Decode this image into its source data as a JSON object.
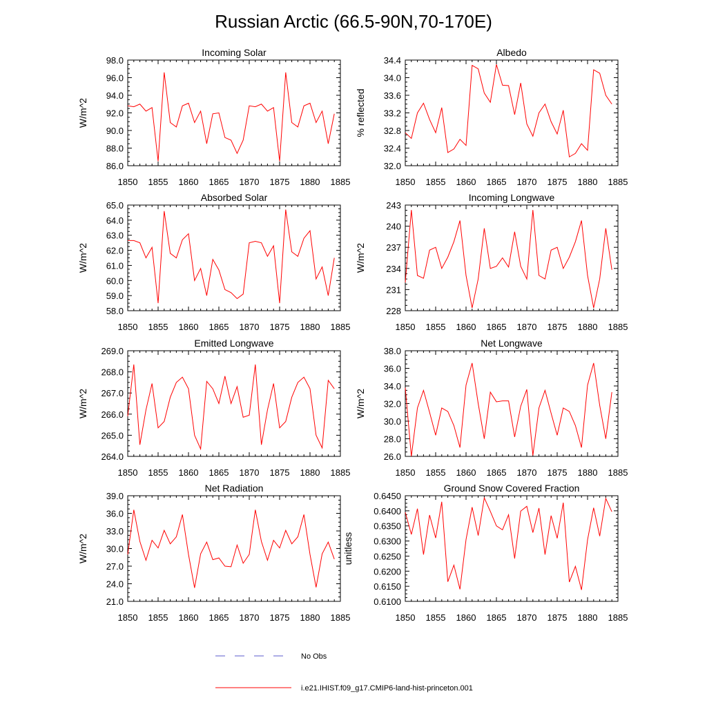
{
  "page": {
    "title": "Russian Arctic (66.5-90N,70-170E)"
  },
  "legend": {
    "items": [
      {
        "label": "No Obs",
        "color": "#5a5acd",
        "style": "dashed"
      },
      {
        "label": "i.e21.IHIST.f09_g17.CMIP6-land-hist-princeton.001",
        "color": "#ff0000",
        "style": "solid"
      }
    ]
  },
  "chart_data": [
    {
      "type": "line",
      "title": "Incoming Solar",
      "ylabel": "W/m^2",
      "xlim": [
        1850,
        1885
      ],
      "ylim": [
        86.0,
        98.0
      ],
      "xticks": [
        "1850",
        "1855",
        "1860",
        "1865",
        "1870",
        "1875",
        "1880",
        "1885"
      ],
      "yticks": [
        "86.0",
        "88.0",
        "90.0",
        "92.0",
        "94.0",
        "96.0",
        "98.0"
      ],
      "series": [
        {
          "color": "#ff0000",
          "x": [
            1850,
            1851,
            1852,
            1853,
            1854,
            1855,
            1856,
            1857,
            1858,
            1859,
            1860,
            1861,
            1862,
            1863,
            1864,
            1865,
            1866,
            1867,
            1868,
            1869,
            1870,
            1871,
            1872,
            1873,
            1874,
            1875,
            1876,
            1877,
            1878,
            1879,
            1880,
            1881,
            1882,
            1883,
            1884
          ],
          "values": [
            92.8,
            92.7,
            93.0,
            92.2,
            92.6,
            86.5,
            96.6,
            90.9,
            90.4,
            92.8,
            93.1,
            90.9,
            92.2,
            88.5,
            91.9,
            92.0,
            89.2,
            88.9,
            87.4,
            88.9,
            92.8,
            92.7,
            93.0,
            92.2,
            92.6,
            86.5,
            96.6,
            90.9,
            90.4,
            92.8,
            93.1,
            90.9,
            92.2,
            88.5,
            91.9
          ]
        }
      ]
    },
    {
      "type": "line",
      "title": "Albedo",
      "ylabel": "% reflected",
      "xlim": [
        1850,
        1885
      ],
      "ylim": [
        32.0,
        34.4
      ],
      "xticks": [
        "1850",
        "1855",
        "1860",
        "1865",
        "1870",
        "1875",
        "1880",
        "1885"
      ],
      "yticks": [
        "32.0",
        "32.4",
        "32.8",
        "33.2",
        "33.6",
        "34.0",
        "34.4"
      ],
      "series": [
        {
          "color": "#ff0000",
          "x": [
            1850,
            1851,
            1852,
            1853,
            1854,
            1855,
            1856,
            1857,
            1858,
            1859,
            1860,
            1861,
            1862,
            1863,
            1864,
            1865,
            1866,
            1867,
            1868,
            1869,
            1870,
            1871,
            1872,
            1873,
            1874,
            1875,
            1876,
            1877,
            1878,
            1879,
            1880,
            1881,
            1882,
            1883,
            1884
          ],
          "values": [
            32.75,
            32.62,
            33.2,
            33.42,
            33.05,
            32.75,
            33.32,
            32.3,
            32.38,
            32.6,
            32.46,
            34.28,
            34.2,
            33.65,
            33.44,
            34.3,
            33.83,
            33.82,
            33.16,
            33.88,
            32.95,
            32.67,
            33.2,
            33.4,
            33.0,
            32.72,
            33.26,
            32.2,
            32.28,
            32.5,
            32.35,
            34.18,
            34.1,
            33.6,
            33.4
          ]
        }
      ]
    },
    {
      "type": "line",
      "title": "Absorbed Solar",
      "ylabel": "W/m^2",
      "xlim": [
        1850,
        1885
      ],
      "ylim": [
        58.0,
        65.0
      ],
      "xticks": [
        "1850",
        "1855",
        "1860",
        "1865",
        "1870",
        "1875",
        "1880",
        "1885"
      ],
      "yticks": [
        "58.0",
        "59.0",
        "60.0",
        "61.0",
        "62.0",
        "63.0",
        "64.0",
        "65.0"
      ],
      "series": [
        {
          "color": "#ff0000",
          "x": [
            1850,
            1851,
            1852,
            1853,
            1854,
            1855,
            1856,
            1857,
            1858,
            1859,
            1860,
            1861,
            1862,
            1863,
            1864,
            1865,
            1866,
            1867,
            1868,
            1869,
            1870,
            1871,
            1872,
            1873,
            1874,
            1875,
            1876,
            1877,
            1878,
            1879,
            1880,
            1881,
            1882,
            1883,
            1884
          ],
          "values": [
            62.65,
            62.65,
            62.5,
            61.5,
            62.2,
            58.5,
            64.6,
            61.8,
            61.5,
            62.7,
            63.1,
            60.0,
            60.8,
            59.0,
            61.4,
            60.7,
            59.4,
            59.2,
            58.8,
            59.1,
            62.5,
            62.6,
            62.5,
            61.6,
            62.3,
            58.5,
            64.7,
            61.9,
            61.6,
            62.8,
            63.3,
            60.1,
            60.9,
            59.0,
            61.5
          ]
        }
      ]
    },
    {
      "type": "line",
      "title": "Incoming Longwave",
      "ylabel": "W/m^2",
      "xlim": [
        1850,
        1885
      ],
      "ylim": [
        228,
        243
      ],
      "xticks": [
        "1850",
        "1855",
        "1860",
        "1865",
        "1870",
        "1875",
        "1880",
        "1885"
      ],
      "yticks": [
        "228",
        "231",
        "234",
        "237",
        "240",
        "243"
      ],
      "series": [
        {
          "color": "#ff0000",
          "x": [
            1850,
            1851,
            1852,
            1853,
            1854,
            1855,
            1856,
            1857,
            1858,
            1859,
            1860,
            1861,
            1862,
            1863,
            1864,
            1865,
            1866,
            1867,
            1868,
            1869,
            1870,
            1871,
            1872,
            1873,
            1874,
            1875,
            1876,
            1877,
            1878,
            1879,
            1880,
            1881,
            1882,
            1883,
            1884
          ],
          "values": [
            232.0,
            242.3,
            233.0,
            232.6,
            236.6,
            237.0,
            234.0,
            235.6,
            237.8,
            240.8,
            233.0,
            228.4,
            232.5,
            239.7,
            234.0,
            234.3,
            235.5,
            234.2,
            239.2,
            234.3,
            232.5,
            242.3,
            233.0,
            232.5,
            236.6,
            237.0,
            234.0,
            235.6,
            237.8,
            240.8,
            233.0,
            228.4,
            232.5,
            239.7,
            233.8
          ]
        }
      ]
    },
    {
      "type": "line",
      "title": "Emitted Longwave",
      "ylabel": "W/m^2",
      "xlim": [
        1850,
        1885
      ],
      "ylim": [
        264.0,
        269.0
      ],
      "xticks": [
        "1850",
        "1855",
        "1860",
        "1865",
        "1870",
        "1875",
        "1880",
        "1885"
      ],
      "yticks": [
        "264.0",
        "265.0",
        "266.0",
        "267.0",
        "268.0",
        "269.0"
      ],
      "series": [
        {
          "color": "#ff0000",
          "x": [
            1850,
            1851,
            1852,
            1853,
            1854,
            1855,
            1856,
            1857,
            1858,
            1859,
            1860,
            1861,
            1862,
            1863,
            1864,
            1865,
            1866,
            1867,
            1868,
            1869,
            1870,
            1871,
            1872,
            1873,
            1874,
            1875,
            1876,
            1877,
            1878,
            1879,
            1880,
            1881,
            1882,
            1883,
            1884
          ],
          "values": [
            265.9,
            268.35,
            264.55,
            266.2,
            267.45,
            265.35,
            265.65,
            266.8,
            267.5,
            267.75,
            267.2,
            265.0,
            264.35,
            267.55,
            267.2,
            266.5,
            267.8,
            266.5,
            267.3,
            265.85,
            265.95,
            268.35,
            264.55,
            266.2,
            267.45,
            265.35,
            265.65,
            266.8,
            267.5,
            267.75,
            267.2,
            265.0,
            264.4,
            267.6,
            267.2
          ]
        }
      ]
    },
    {
      "type": "line",
      "title": "Net Longwave",
      "ylabel": "W/m^2",
      "xlim": [
        1850,
        1885
      ],
      "ylim": [
        26.0,
        38.0
      ],
      "xticks": [
        "1850",
        "1855",
        "1860",
        "1865",
        "1870",
        "1875",
        "1880",
        "1885"
      ],
      "yticks": [
        "26.0",
        "28.0",
        "30.0",
        "32.0",
        "34.0",
        "36.0",
        "38.0"
      ],
      "series": [
        {
          "color": "#ff0000",
          "x": [
            1850,
            1851,
            1852,
            1853,
            1854,
            1855,
            1856,
            1857,
            1858,
            1859,
            1860,
            1861,
            1862,
            1863,
            1864,
            1865,
            1866,
            1867,
            1868,
            1869,
            1870,
            1871,
            1872,
            1873,
            1874,
            1875,
            1876,
            1877,
            1878,
            1879,
            1880,
            1881,
            1882,
            1883,
            1884
          ],
          "values": [
            33.8,
            26.0,
            31.5,
            33.5,
            31.0,
            28.4,
            31.5,
            31.1,
            29.5,
            27.0,
            34.1,
            36.6,
            32.0,
            28.0,
            33.3,
            32.2,
            32.3,
            32.3,
            28.2,
            31.7,
            33.6,
            26.1,
            31.5,
            33.5,
            30.9,
            28.4,
            31.5,
            31.1,
            29.5,
            27.0,
            34.1,
            36.6,
            31.8,
            28.0,
            33.3
          ]
        }
      ]
    },
    {
      "type": "line",
      "title": "Net Radiation",
      "ylabel": "W/m^2",
      "xlim": [
        1850,
        1885
      ],
      "ylim": [
        21.0,
        39.0
      ],
      "xticks": [
        "1850",
        "1855",
        "1860",
        "1865",
        "1870",
        "1875",
        "1880",
        "1885"
      ],
      "yticks": [
        "21.0",
        "24.0",
        "27.0",
        "30.0",
        "33.0",
        "36.0",
        "39.0"
      ],
      "series": [
        {
          "color": "#ff0000",
          "x": [
            1850,
            1851,
            1852,
            1853,
            1854,
            1855,
            1856,
            1857,
            1858,
            1859,
            1860,
            1861,
            1862,
            1863,
            1864,
            1865,
            1866,
            1867,
            1868,
            1869,
            1870,
            1871,
            1872,
            1873,
            1874,
            1875,
            1876,
            1877,
            1878,
            1879,
            1880,
            1881,
            1882,
            1883,
            1884
          ],
          "values": [
            29.0,
            36.6,
            31.2,
            28.0,
            31.4,
            30.1,
            33.1,
            30.8,
            32.0,
            35.8,
            29.0,
            23.3,
            29.1,
            31.1,
            28.1,
            28.4,
            27.0,
            26.9,
            30.6,
            27.5,
            29.0,
            36.6,
            31.2,
            28.0,
            31.4,
            30.1,
            33.1,
            30.8,
            32.0,
            35.8,
            29.0,
            23.4,
            29.1,
            31.1,
            28.2
          ]
        }
      ]
    },
    {
      "type": "line",
      "title": "Ground Snow Covered Fraction",
      "ylabel": "unitless",
      "xlim": [
        1850,
        1885
      ],
      "ylim": [
        0.61,
        0.645
      ],
      "xticks": [
        "1850",
        "1855",
        "1860",
        "1865",
        "1870",
        "1875",
        "1880",
        "1885"
      ],
      "yticks": [
        "0.6100",
        "0.6150",
        "0.6200",
        "0.6250",
        "0.6300",
        "0.6350",
        "0.6400",
        "0.6450"
      ],
      "series": [
        {
          "color": "#ff0000",
          "x": [
            1850,
            1851,
            1852,
            1853,
            1854,
            1855,
            1856,
            1857,
            1858,
            1859,
            1860,
            1861,
            1862,
            1863,
            1864,
            1865,
            1866,
            1867,
            1868,
            1869,
            1870,
            1871,
            1872,
            1873,
            1874,
            1875,
            1876,
            1877,
            1878,
            1879,
            1880,
            1881,
            1882,
            1883,
            1884
          ],
          "values": [
            0.6395,
            0.6322,
            0.6407,
            0.6255,
            0.6386,
            0.631,
            0.643,
            0.6165,
            0.622,
            0.614,
            0.6305,
            0.6412,
            0.6318,
            0.6443,
            0.6398,
            0.635,
            0.6337,
            0.6387,
            0.6242,
            0.6399,
            0.6415,
            0.6328,
            0.6409,
            0.6255,
            0.6384,
            0.6309,
            0.6427,
            0.6164,
            0.6216,
            0.6138,
            0.6304,
            0.641,
            0.6316,
            0.6441,
            0.6397
          ]
        }
      ]
    }
  ]
}
